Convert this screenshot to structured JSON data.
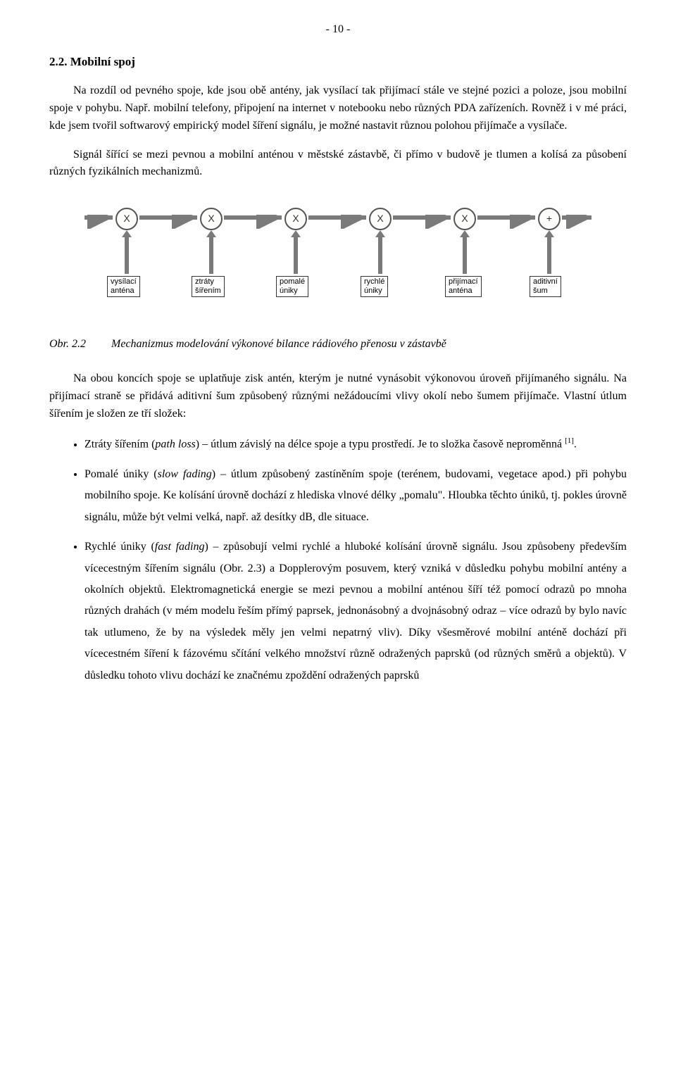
{
  "pageNumber": "- 10 -",
  "sectionHeader": "2.2. Mobilní spoj",
  "para1": "Na rozdíl od pevného spoje, kde jsou obě antény, jak vysílací tak přijímací stále ve stejné pozici a poloze, jsou mobilní spoje v pohybu. Např. mobilní telefony, připojení na internet v notebooku nebo různých PDA zařízeních. Rovněž i v mé práci, kde jsem tvořil softwarový empirický model šíření signálu, je možné nastavit různou polohou přijímače a vysílače.",
  "para2": "Signál šířící se mezi pevnou a mobilní anténou v městské zástavbě, či přímo v budově je tlumen a kolísá za působení různých fyzikálních mechanizmů.",
  "diagram": {
    "arrowColor": "#7a7a7a",
    "nodeSymbols": [
      "X",
      "X",
      "X",
      "X",
      "X",
      "+"
    ],
    "labels": [
      "vysílací\nanténa",
      "ztráty\nšířením",
      "pomalé\núniky",
      "rychlé\núniky",
      "přijímací\nanténa",
      "aditivní\nšum"
    ],
    "xPositions": [
      60,
      180,
      300,
      420,
      540,
      660
    ]
  },
  "figCaption": {
    "num": "Obr. 2.2",
    "text": "Mechanizmus modelování výkonové bilance rádiového přenosu v zástavbě"
  },
  "para3": "Na obou koncích spoje se uplatňuje zisk antén, kterým je nutné vynásobit výkonovou úroveň přijímaného signálu. Na přijímací straně se přidává aditivní šum způsobený různými nežádoucími vlivy okolí nebo šumem přijímače. Vlastní útlum šířením je složen ze tří složek:",
  "bullet1": {
    "lead": "Ztráty šířením (",
    "term": "path loss",
    "rest1": ") – útlum závislý na délce spoje a typu prostředí. Je to složka časově neproměnná ",
    "cite": "[1]",
    "rest2": "."
  },
  "bullet2": {
    "lead": "Pomalé úniky (",
    "term": "slow fading",
    "rest": ") – útlum způsobený zastíněním spoje (terénem, budovami, vegetace apod.) při pohybu mobilního spoje. Ke kolísání úrovně dochází z hlediska vlnové délky „pomalu\". Hloubka těchto úniků, tj. pokles úrovně signálu, může být velmi velká, např. až desítky dB, dle situace."
  },
  "bullet3": {
    "lead": "Rychlé úniky (",
    "term": "fast fading",
    "rest": ") – způsobují velmi rychlé a hluboké kolísání úrovně signálu. Jsou způsobeny především vícecestným šířením signálu (Obr. 2.3) a Dopplerovým posuvem, který vzniká v důsledku pohybu mobilní antény a okolních objektů. Elektromagnetická energie se mezi pevnou a mobilní anténou šíří též pomocí odrazů po mnoha různých drahách (v mém modelu řeším přímý paprsek, jednonásobný a dvojnásobný odraz – více odrazů by bylo navíc tak utlumeno, že by na výsledek měly jen velmi nepatrný vliv). Díky všesměrové mobilní anténě dochází při vícecestném šíření k fázovému sčítání velkého množství různě odražených paprsků (od různých směrů a objektů). V důsledku tohoto vlivu dochází ke značnému zpoždění odražených paprsků"
  }
}
